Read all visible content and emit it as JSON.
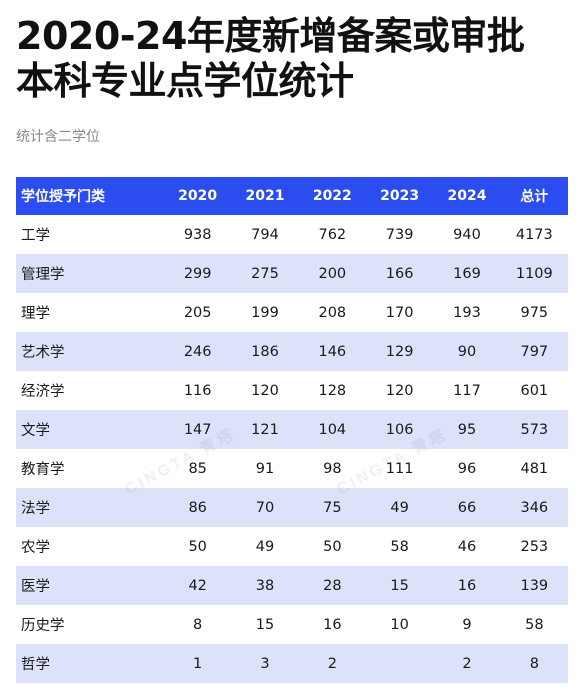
{
  "title_line1": "2020-24年度新增备案或审批",
  "title_line2": "本科专业点学位统计",
  "subtitle": "统计含二学位",
  "watermark": "CINGTA 青塔",
  "colors": {
    "header_bg": "#2b4df0",
    "stripe_bg": "#dde2fb"
  },
  "table": {
    "headers": [
      "学位授予门类",
      "2020",
      "2021",
      "2022",
      "2023",
      "2024",
      "总计"
    ],
    "rows": [
      [
        "工学",
        "938",
        "794",
        "762",
        "739",
        "940",
        "4173"
      ],
      [
        "管理学",
        "299",
        "275",
        "200",
        "166",
        "169",
        "1109"
      ],
      [
        "理学",
        "205",
        "199",
        "208",
        "170",
        "193",
        "975"
      ],
      [
        "艺术学",
        "246",
        "186",
        "146",
        "129",
        "90",
        "797"
      ],
      [
        "经济学",
        "116",
        "120",
        "128",
        "120",
        "117",
        "601"
      ],
      [
        "文学",
        "147",
        "121",
        "104",
        "106",
        "95",
        "573"
      ],
      [
        "教育学",
        "85",
        "91",
        "98",
        "111",
        "96",
        "481"
      ],
      [
        "法学",
        "86",
        "70",
        "75",
        "49",
        "66",
        "346"
      ],
      [
        "农学",
        "50",
        "49",
        "50",
        "58",
        "46",
        "253"
      ],
      [
        "医学",
        "42",
        "38",
        "28",
        "15",
        "16",
        "139"
      ],
      [
        "历史学",
        "8",
        "15",
        "16",
        "10",
        "9",
        "58"
      ],
      [
        "哲学",
        "1",
        "3",
        "2",
        "",
        "2",
        "8"
      ]
    ]
  }
}
